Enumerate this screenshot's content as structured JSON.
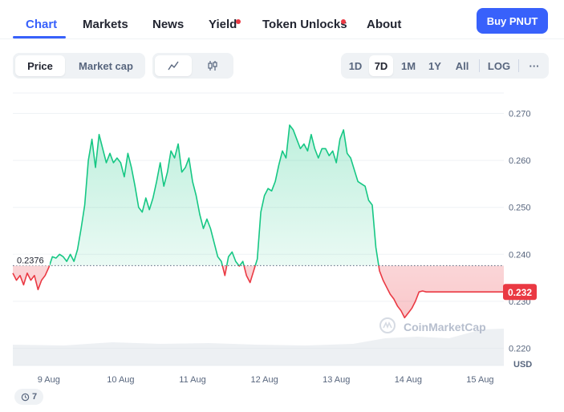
{
  "nav": {
    "tabs": [
      {
        "label": "Chart",
        "active": true
      },
      {
        "label": "Markets"
      },
      {
        "label": "News"
      },
      {
        "label": "Yield",
        "dot": true
      },
      {
        "label": "Token Unlocks",
        "dot": true
      },
      {
        "label": "About"
      }
    ],
    "buy_label": "Buy PNUT"
  },
  "toolbar": {
    "metric_tabs": [
      {
        "label": "Price",
        "active": true
      },
      {
        "label": "Market cap"
      }
    ],
    "chart_style_icons": [
      "line-chart-icon",
      "candlestick-icon"
    ],
    "ranges": [
      {
        "label": "1D"
      },
      {
        "label": "7D",
        "active": true
      },
      {
        "label": "1M"
      },
      {
        "label": "1Y"
      },
      {
        "label": "All"
      }
    ],
    "log_label": "LOG",
    "more_label": "···"
  },
  "colors": {
    "up": "#16c784",
    "down": "#ea3943",
    "accent": "#3861fb",
    "grid": "#eff2f5",
    "text_muted": "#58667e"
  },
  "watermark": "CoinMarketCap",
  "history_count": "7",
  "chart_data": {
    "type": "area",
    "baseline": 0.2376,
    "baseline_label": "0.2376",
    "current_price": 0.232,
    "current_price_label": "0.232",
    "ylim": [
      0.216,
      0.274
    ],
    "yticks": [
      {
        "value": 0.22,
        "label": "0.220"
      },
      {
        "value": 0.23,
        "label": "0.230"
      },
      {
        "value": 0.24,
        "label": "0.240"
      },
      {
        "value": 0.25,
        "label": "0.250"
      },
      {
        "value": 0.26,
        "label": "0.260"
      },
      {
        "value": 0.27,
        "label": "0.270"
      }
    ],
    "y_unit": "USD",
    "xlim": [
      8.5,
      15.33
    ],
    "xticks": [
      {
        "value": 9,
        "label": "9 Aug"
      },
      {
        "value": 10,
        "label": "10 Aug"
      },
      {
        "value": 11,
        "label": "11 Aug"
      },
      {
        "value": 12,
        "label": "12 Aug"
      },
      {
        "value": 13,
        "label": "13 Aug"
      },
      {
        "value": 14,
        "label": "14 Aug"
      },
      {
        "value": 15,
        "label": "15 Aug"
      }
    ],
    "series": [
      {
        "x": [
          8.5,
          8.55,
          8.6,
          8.65,
          8.7,
          8.75,
          8.8,
          8.85,
          8.9,
          8.95,
          9.0,
          9.05,
          9.1,
          9.15,
          9.2,
          9.25,
          9.3,
          9.35,
          9.4,
          9.45,
          9.5,
          9.55,
          9.6,
          9.65,
          9.7,
          9.75,
          9.8,
          9.85,
          9.9,
          9.95,
          10.0,
          10.05,
          10.1,
          10.15,
          10.2,
          10.25,
          10.3,
          10.35,
          10.4,
          10.45,
          10.5,
          10.55,
          10.6,
          10.65,
          10.7,
          10.75,
          10.8,
          10.85,
          10.9,
          10.95,
          11.0,
          11.05,
          11.1,
          11.15,
          11.2,
          11.25,
          11.3,
          11.35,
          11.4,
          11.45,
          11.5,
          11.55,
          11.6,
          11.65,
          11.7,
          11.75,
          11.8,
          11.85,
          11.9,
          11.95,
          12.0,
          12.05,
          12.1,
          12.15,
          12.2,
          12.25,
          12.3,
          12.35,
          12.4,
          12.45,
          12.5,
          12.55,
          12.6,
          12.65,
          12.7,
          12.75,
          12.8,
          12.85,
          12.9,
          12.95,
          13.0,
          13.05,
          13.1,
          13.15,
          13.2,
          13.25,
          13.3,
          13.35,
          13.4,
          13.45,
          13.5,
          13.55,
          13.6,
          13.65,
          13.7,
          13.75,
          13.8,
          13.85,
          13.9,
          13.95,
          14.0,
          14.05,
          14.1,
          14.15,
          14.2,
          14.25,
          14.3,
          14.35,
          14.4,
          14.45,
          14.5,
          14.55,
          14.6,
          14.65,
          14.7,
          14.75,
          14.8,
          14.85,
          14.9,
          14.95,
          15.0,
          15.05,
          15.1,
          15.15,
          15.2,
          15.25,
          15.3,
          15.33
        ],
        "y": [
          0.236,
          0.2345,
          0.2355,
          0.2335,
          0.236,
          0.2345,
          0.2355,
          0.2325,
          0.2345,
          0.2355,
          0.2372,
          0.2395,
          0.2392,
          0.24,
          0.2395,
          0.2385,
          0.24,
          0.2385,
          0.241,
          0.2455,
          0.2505,
          0.26,
          0.2645,
          0.2585,
          0.2655,
          0.2625,
          0.2595,
          0.2615,
          0.2595,
          0.2605,
          0.2595,
          0.2565,
          0.2615,
          0.2585,
          0.2545,
          0.25,
          0.249,
          0.252,
          0.2495,
          0.252,
          0.2555,
          0.2595,
          0.2545,
          0.2575,
          0.262,
          0.2605,
          0.2635,
          0.2575,
          0.2585,
          0.2605,
          0.2555,
          0.2525,
          0.2485,
          0.2455,
          0.2475,
          0.2455,
          0.2425,
          0.2395,
          0.2385,
          0.2355,
          0.2395,
          0.2405,
          0.2385,
          0.2375,
          0.2385,
          0.2355,
          0.234,
          0.2365,
          0.239,
          0.249,
          0.2525,
          0.254,
          0.2535,
          0.2555,
          0.259,
          0.262,
          0.2605,
          0.2675,
          0.2665,
          0.2645,
          0.2625,
          0.2635,
          0.262,
          0.2655,
          0.2625,
          0.2605,
          0.2625,
          0.2625,
          0.261,
          0.262,
          0.2595,
          0.2645,
          0.2665,
          0.2615,
          0.2605,
          0.258,
          0.2555,
          0.255,
          0.2545,
          0.2515,
          0.2505,
          0.2415,
          0.2365,
          0.2345,
          0.233,
          0.2315,
          0.2305,
          0.229,
          0.228,
          0.2265,
          0.2275,
          0.2285,
          0.23,
          0.232,
          0.2322,
          0.232,
          0.232,
          0.232,
          0.232,
          0.232,
          0.232,
          0.232,
          0.232,
          0.232,
          0.232,
          0.232,
          0.232,
          0.232,
          0.232,
          0.232,
          0.232,
          0.232,
          0.232,
          0.232,
          0.232,
          0.232,
          0.232,
          0.232
        ]
      }
    ],
    "grid": true
  }
}
